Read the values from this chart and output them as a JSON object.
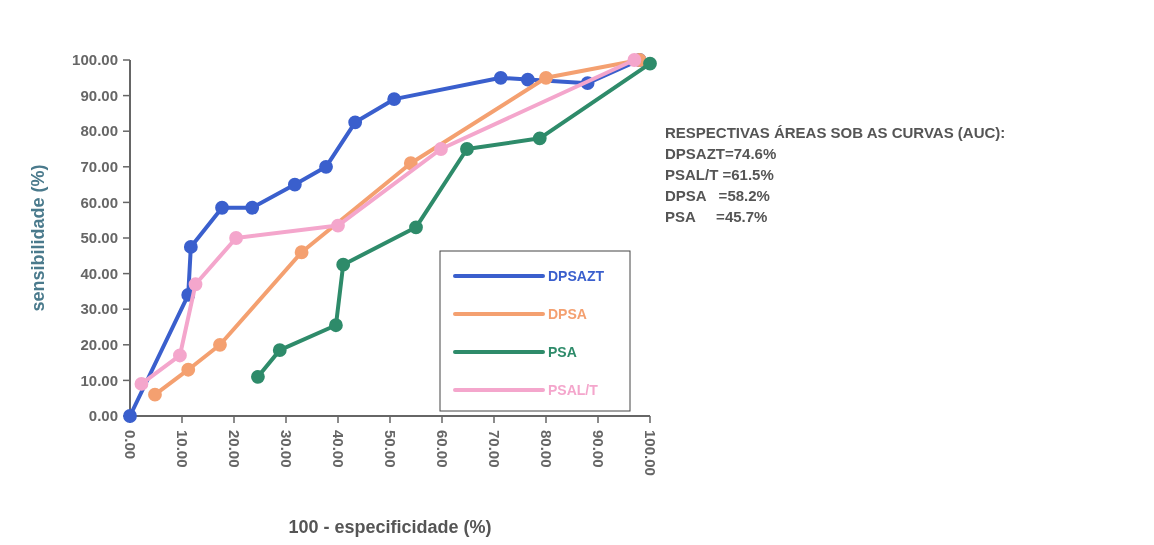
{
  "chart_data": {
    "type": "line",
    "xlabel": "100 - especificidade (%)",
    "ylabel": "sensibilidade (%)",
    "xlim": [
      0,
      100
    ],
    "ylim": [
      0,
      100
    ],
    "xticks": [
      {
        "value": 0,
        "label": "0.00"
      },
      {
        "value": 10,
        "label": "10.00"
      },
      {
        "value": 20,
        "label": "20.00"
      },
      {
        "value": 30,
        "label": "30.00"
      },
      {
        "value": 40,
        "label": "40.00"
      },
      {
        "value": 50,
        "label": "50.00"
      },
      {
        "value": 60,
        "label": "60.00"
      },
      {
        "value": 70,
        "label": "70.00"
      },
      {
        "value": 80,
        "label": "80.00"
      },
      {
        "value": 90,
        "label": "90.00"
      },
      {
        "value": 100,
        "label": "100.00"
      }
    ],
    "yticks": [
      {
        "value": 0,
        "label": "0.00"
      },
      {
        "value": 10,
        "label": "10.00"
      },
      {
        "value": 20,
        "label": "20.00"
      },
      {
        "value": 30,
        "label": "30.00"
      },
      {
        "value": 40,
        "label": "40.00"
      },
      {
        "value": 50,
        "label": "50.00"
      },
      {
        "value": 60,
        "label": "60.00"
      },
      {
        "value": 70,
        "label": "70.00"
      },
      {
        "value": 80,
        "label": "80.00"
      },
      {
        "value": 90,
        "label": "90.00"
      },
      {
        "value": 100,
        "label": "100.00"
      }
    ],
    "series": [
      {
        "name": "DPSAZT",
        "color": "#3a5fcd",
        "x": [
          0,
          11.2,
          11.7,
          17.7,
          23.5,
          31.7,
          37.7,
          43.3,
          50.8,
          71.3,
          76.5,
          88,
          98
        ],
        "values": [
          0,
          34,
          47.5,
          58.5,
          58.5,
          65,
          70,
          82.5,
          89,
          95,
          94.5,
          93.5,
          100
        ]
      },
      {
        "name": "DPSA",
        "color": "#f4a070",
        "x": [
          4.8,
          11.2,
          17.3,
          33,
          54,
          80,
          98
        ],
        "values": [
          6,
          13,
          20,
          46,
          71,
          95,
          100
        ]
      },
      {
        "name": "PSA",
        "color": "#2e8b6a",
        "x": [
          24.6,
          28.8,
          39.6,
          41,
          55,
          64.8,
          78.8,
          100
        ],
        "values": [
          11,
          18.5,
          25.5,
          42.5,
          53,
          75,
          78,
          99
        ]
      },
      {
        "name": "PSAL/T",
        "color": "#f4a6cc",
        "x": [
          2.2,
          9.6,
          12.6,
          20.4,
          40,
          59.8,
          97
        ],
        "values": [
          9,
          17,
          37,
          50,
          53.5,
          75,
          100
        ]
      }
    ],
    "marker": "circle",
    "line_style": "solid",
    "grid": false,
    "legend": "bottom right",
    "annotations": [
      "RESPECTIVAS ÁREAS SOB AS CURVAS (AUC):",
      "DPSAZT=74.6%",
      "PSAL/T =61.5%",
      "DPSA   =58.2%",
      "PSA     =45.7%"
    ]
  }
}
